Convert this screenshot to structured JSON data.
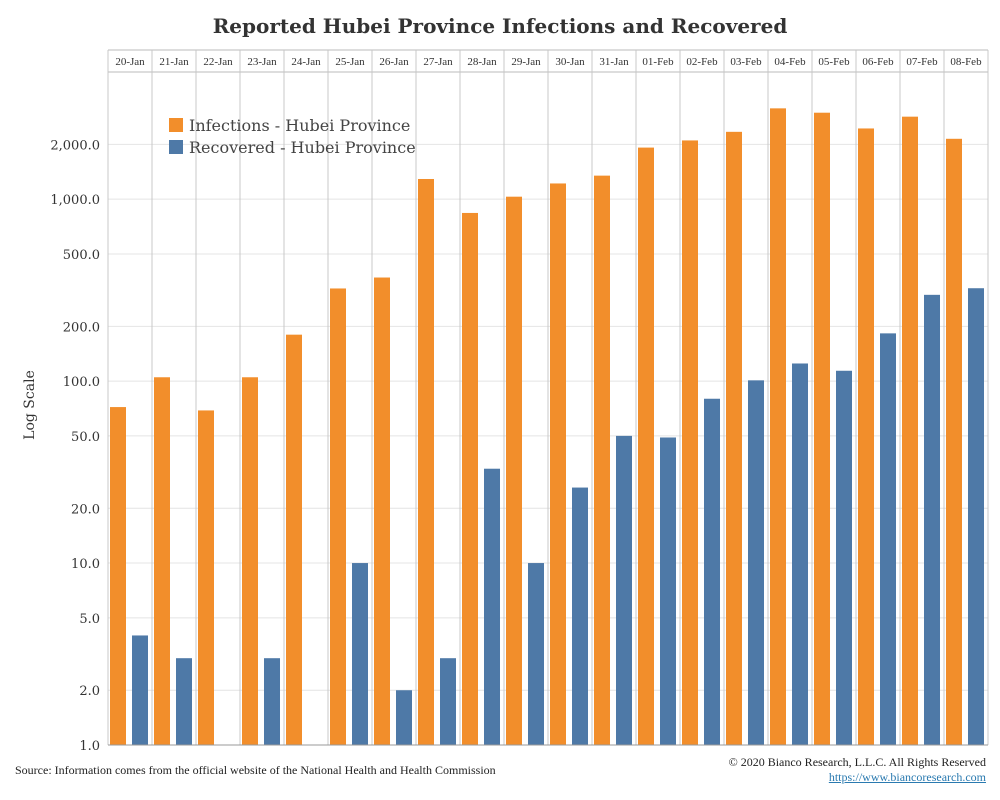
{
  "chart_data": {
    "type": "bar",
    "title": "Reported Hubei Province Infections and Recovered",
    "ylabel": "Log Scale",
    "xlabel": "",
    "yscale": "log",
    "ylim": [
      1,
      5000
    ],
    "yticks": [
      1,
      2,
      5,
      10,
      20,
      50,
      100,
      200,
      500,
      1000,
      2000
    ],
    "ytick_labels": [
      "1.0",
      "2.0",
      "5.0",
      "10.0",
      "20.0",
      "50.0",
      "100.0",
      "200.0",
      "500.0",
      "1,000.0",
      "2,000.0"
    ],
    "categories": [
      "20-Jan",
      "21-Jan",
      "22-Jan",
      "23-Jan",
      "24-Jan",
      "25-Jan",
      "26-Jan",
      "27-Jan",
      "28-Jan",
      "29-Jan",
      "30-Jan",
      "31-Jan",
      "01-Feb",
      "02-Feb",
      "03-Feb",
      "04-Feb",
      "05-Feb",
      "06-Feb",
      "07-Feb",
      "08-Feb"
    ],
    "series": [
      {
        "name": "Infections - Hubei Province",
        "color": "#f28e2b",
        "values": [
          72,
          105,
          69,
          105,
          180,
          323,
          371,
          1291,
          840,
          1032,
          1220,
          1347,
          1921,
          2103,
          2345,
          3156,
          2987,
          2447,
          2841,
          2147
        ]
      },
      {
        "name": "Recovered - Hubei Province",
        "color": "#4e79a7",
        "values": [
          4,
          3,
          null,
          3,
          null,
          10,
          2,
          3,
          33,
          10,
          26,
          50,
          49,
          80,
          101,
          125,
          114,
          183,
          298,
          324
        ]
      }
    ],
    "legend_position": "top-left",
    "grid": true
  },
  "footer": {
    "source": "Source: Information comes from the official website of the National Health and Health Commission",
    "copyright": "© 2020 Bianco Research, L.L.C. All Rights Reserved",
    "url": "https://www.biancoresearch.com"
  }
}
